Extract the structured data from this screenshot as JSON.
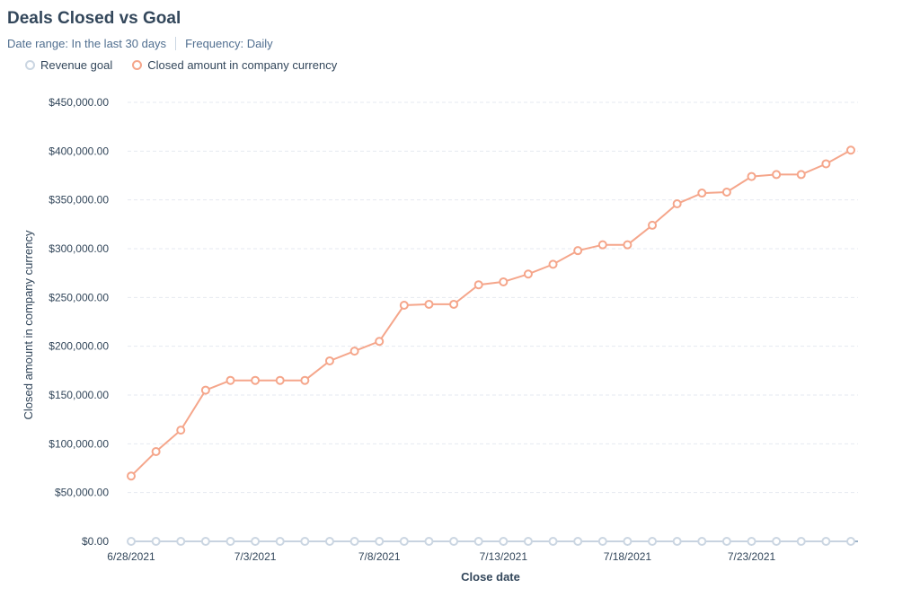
{
  "header": {
    "title": "Deals Closed vs Goal",
    "date_range": "Date range: In the last 30 days",
    "frequency": "Frequency: Daily"
  },
  "colors": {
    "goal": "#cbd6e2",
    "closed": "#f5a68b",
    "grid": "#e5eaf0",
    "baseline": "#7c98b6"
  },
  "chart_data": {
    "type": "line",
    "xlabel": "Close date",
    "ylabel": "Closed amount in company currency",
    "ylim": [
      0,
      450000
    ],
    "y_ticks": [
      "$0.00",
      "$50,000.00",
      "$100,000.00",
      "$150,000.00",
      "$200,000.00",
      "$250,000.00",
      "$300,000.00",
      "$350,000.00",
      "$400,000.00",
      "$450,000.00"
    ],
    "x": [
      "6/28/2021",
      "6/29/2021",
      "6/30/2021",
      "7/1/2021",
      "7/2/2021",
      "7/3/2021",
      "7/4/2021",
      "7/5/2021",
      "7/6/2021",
      "7/7/2021",
      "7/8/2021",
      "7/9/2021",
      "7/10/2021",
      "7/11/2021",
      "7/12/2021",
      "7/13/2021",
      "7/14/2021",
      "7/15/2021",
      "7/16/2021",
      "7/17/2021",
      "7/18/2021",
      "7/19/2021",
      "7/20/2021",
      "7/21/2021",
      "7/22/2021",
      "7/23/2021",
      "7/24/2021",
      "7/25/2021",
      "7/26/2021",
      "7/27/2021"
    ],
    "x_tick_labels": [
      "6/28/2021",
      "7/3/2021",
      "7/8/2021",
      "7/13/2021",
      "7/18/2021",
      "7/23/2021"
    ],
    "legend": "top-left",
    "grid": true,
    "series": [
      {
        "name": "Revenue goal",
        "values": [
          0,
          0,
          0,
          0,
          0,
          0,
          0,
          0,
          0,
          0,
          0,
          0,
          0,
          0,
          0,
          0,
          0,
          0,
          0,
          0,
          0,
          0,
          0,
          0,
          0,
          0,
          0,
          0,
          0,
          0
        ]
      },
      {
        "name": "Closed amount in company currency",
        "values": [
          67000,
          92000,
          114000,
          155000,
          165000,
          165000,
          165000,
          165000,
          185000,
          195000,
          205000,
          242000,
          243000,
          243000,
          263000,
          266000,
          274000,
          284000,
          298000,
          304000,
          304000,
          324000,
          346000,
          357000,
          358000,
          374000,
          376000,
          376000,
          387000,
          401000
        ]
      }
    ]
  }
}
